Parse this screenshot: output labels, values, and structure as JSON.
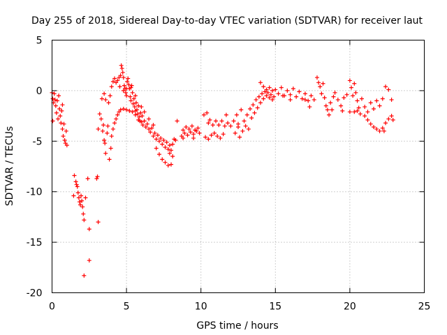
{
  "chart_data": {
    "type": "scatter",
    "title": "Day 255 of 2018, Sidereal Day-to-day VTEC variation (SDTVAR) for receiver laut",
    "xlabel": "GPS time / hours",
    "ylabel": "SDTVAR / TECUs",
    "xlim": [
      0,
      25
    ],
    "ylim": [
      -20,
      5
    ],
    "xticks": [
      0,
      5,
      10,
      15,
      20,
      25
    ],
    "yticks": [
      5,
      0,
      -5,
      -10,
      -15,
      -20
    ],
    "xtick_labels": [
      "0",
      "5",
      "10",
      "15",
      "20",
      "25"
    ],
    "ytick_labels": [
      "5",
      "0",
      "-5",
      "-10",
      "-15",
      "-20"
    ],
    "grid": true,
    "marker": "+",
    "color": "#ff0000",
    "series": [
      {
        "name": "SDTVAR",
        "points": [
          [
            0.0,
            -0.2
          ],
          [
            0.05,
            -0.8
          ],
          [
            0.1,
            -1.2
          ],
          [
            0.15,
            -0.3
          ],
          [
            0.2,
            -0.9
          ],
          [
            0.25,
            -1.5
          ],
          [
            0.3,
            -2.2
          ],
          [
            0.35,
            -1.0
          ],
          [
            0.4,
            -2.8
          ],
          [
            0.05,
            -3.0
          ],
          [
            0.5,
            -1.8
          ],
          [
            0.55,
            -2.5
          ],
          [
            0.6,
            -3.2
          ],
          [
            0.65,
            -2.0
          ],
          [
            0.7,
            -3.8
          ],
          [
            0.75,
            -4.5
          ],
          [
            0.8,
            -3.3
          ],
          [
            0.85,
            -4.9
          ],
          [
            0.9,
            -5.2
          ],
          [
            0.95,
            -4.0
          ],
          [
            1.0,
            -5.4
          ],
          [
            0.45,
            -0.5
          ],
          [
            0.7,
            -1.4
          ],
          [
            1.5,
            -8.4
          ],
          [
            1.6,
            -9.0
          ],
          [
            1.7,
            -9.5
          ],
          [
            1.75,
            -10.1
          ],
          [
            1.8,
            -10.6
          ],
          [
            1.85,
            -11.0
          ],
          [
            1.9,
            -11.3
          ],
          [
            1.95,
            -10.4
          ],
          [
            2.0,
            -10.9
          ],
          [
            2.05,
            -11.5
          ],
          [
            2.1,
            -12.2
          ],
          [
            2.15,
            -12.8
          ],
          [
            1.45,
            -10.4
          ],
          [
            2.25,
            -10.6
          ],
          [
            2.4,
            -8.7
          ],
          [
            2.5,
            -13.7
          ],
          [
            2.5,
            -16.8
          ],
          [
            2.15,
            -18.3
          ],
          [
            1.65,
            -9.3
          ],
          [
            3.0,
            -8.7
          ],
          [
            3.05,
            -8.5
          ],
          [
            3.1,
            -13.0
          ],
          [
            3.1,
            -3.8
          ],
          [
            3.2,
            -2.3
          ],
          [
            3.3,
            -2.8
          ],
          [
            3.4,
            -4.0
          ],
          [
            3.45,
            -3.4
          ],
          [
            3.5,
            -4.9
          ],
          [
            3.55,
            -5.2
          ],
          [
            3.6,
            -6.2
          ],
          [
            3.7,
            -4.2
          ],
          [
            3.75,
            -3.5
          ],
          [
            3.85,
            -6.8
          ],
          [
            3.95,
            -5.7
          ],
          [
            4.0,
            -4.5
          ],
          [
            4.1,
            -3.8
          ],
          [
            4.2,
            -3.2
          ],
          [
            4.3,
            -2.8
          ],
          [
            4.4,
            -2.4
          ],
          [
            4.5,
            -2.1
          ],
          [
            4.6,
            -1.9
          ],
          [
            4.8,
            -1.8
          ],
          [
            5.0,
            -1.9
          ],
          [
            5.2,
            -2.0
          ],
          [
            5.4,
            -2.1
          ],
          [
            5.6,
            -2.4
          ],
          [
            5.8,
            -2.9
          ],
          [
            3.35,
            -0.8
          ],
          [
            3.5,
            -0.3
          ],
          [
            3.6,
            -0.9
          ],
          [
            3.8,
            -1.2
          ],
          [
            3.9,
            -0.5
          ],
          [
            4.0,
            0.4
          ],
          [
            4.1,
            0.9
          ],
          [
            4.2,
            1.2
          ],
          [
            4.3,
            0.8
          ],
          [
            4.4,
            1.0
          ],
          [
            4.5,
            1.3
          ],
          [
            4.55,
            0.4
          ],
          [
            4.6,
            1.5
          ],
          [
            4.65,
            2.5
          ],
          [
            4.7,
            2.2
          ],
          [
            4.75,
            1.8
          ],
          [
            4.8,
            1.3
          ],
          [
            4.85,
            0.5
          ],
          [
            4.9,
            0.2
          ],
          [
            4.95,
            -0.2
          ],
          [
            5.0,
            -0.5
          ],
          [
            5.05,
            0.9
          ],
          [
            5.1,
            1.2
          ],
          [
            5.15,
            0.6
          ],
          [
            5.2,
            0.2
          ],
          [
            5.25,
            -0.6
          ],
          [
            5.3,
            -1.0
          ],
          [
            5.35,
            0.5
          ],
          [
            5.4,
            -0.2
          ],
          [
            5.45,
            -1.3
          ],
          [
            5.5,
            -0.8
          ],
          [
            5.55,
            -1.6
          ],
          [
            5.6,
            -2.0
          ],
          [
            5.65,
            -1.2
          ],
          [
            5.7,
            -1.9
          ],
          [
            5.75,
            -2.3
          ],
          [
            5.8,
            -1.5
          ],
          [
            5.85,
            -2.6
          ],
          [
            5.9,
            -3.0
          ],
          [
            5.95,
            -2.2
          ],
          [
            6.0,
            -3.1
          ],
          [
            6.05,
            -2.5
          ],
          [
            6.1,
            -3.4
          ],
          [
            6.2,
            -3.0
          ],
          [
            6.3,
            -3.6
          ],
          [
            6.4,
            -3.3
          ],
          [
            6.5,
            -3.8
          ],
          [
            6.6,
            -4.1
          ],
          [
            6.7,
            -3.7
          ],
          [
            6.8,
            -4.5
          ],
          [
            6.9,
            -4.2
          ],
          [
            7.0,
            -4.8
          ],
          [
            7.1,
            -4.4
          ],
          [
            7.2,
            -5.0
          ],
          [
            7.3,
            -4.7
          ],
          [
            7.4,
            -5.3
          ],
          [
            7.5,
            -4.9
          ],
          [
            7.6,
            -5.6
          ],
          [
            7.7,
            -5.1
          ],
          [
            7.8,
            -5.8
          ],
          [
            7.9,
            -5.4
          ],
          [
            8.0,
            -5.9
          ],
          [
            8.1,
            -5.3
          ],
          [
            8.2,
            -4.8
          ],
          [
            8.3,
            -4.9
          ],
          [
            8.4,
            -3.0
          ],
          [
            6.5,
            -2.8
          ],
          [
            6.8,
            -3.4
          ],
          [
            7.0,
            -5.7
          ],
          [
            7.2,
            -6.3
          ],
          [
            7.4,
            -6.8
          ],
          [
            7.6,
            -7.1
          ],
          [
            7.8,
            -7.4
          ],
          [
            8.0,
            -7.3
          ],
          [
            8.1,
            -6.5
          ],
          [
            7.9,
            -6.2
          ],
          [
            6.2,
            -2.1
          ],
          [
            5.0,
            0.2
          ],
          [
            4.8,
            0.0
          ],
          [
            5.3,
            0.3
          ],
          [
            5.6,
            -0.5
          ],
          [
            6.0,
            -1.6
          ],
          [
            8.7,
            -4.5
          ],
          [
            8.8,
            -3.9
          ],
          [
            8.9,
            -4.2
          ],
          [
            9.0,
            -3.6
          ],
          [
            9.1,
            -4.4
          ],
          [
            9.2,
            -3.8
          ],
          [
            9.3,
            -4.1
          ],
          [
            9.4,
            -3.5
          ],
          [
            9.5,
            -4.3
          ],
          [
            9.6,
            -3.9
          ],
          [
            9.7,
            -4.0
          ],
          [
            9.8,
            -3.7
          ],
          [
            9.9,
            -4.2
          ],
          [
            8.8,
            -4.7
          ],
          [
            9.5,
            -4.7
          ],
          [
            10.2,
            -2.4
          ],
          [
            10.4,
            -2.2
          ],
          [
            10.5,
            -3.2
          ],
          [
            10.6,
            -2.9
          ],
          [
            10.3,
            -4.6
          ],
          [
            10.5,
            -4.8
          ],
          [
            10.7,
            -4.4
          ],
          [
            10.9,
            -4.2
          ],
          [
            11.1,
            -4.5
          ],
          [
            11.3,
            -4.7
          ],
          [
            11.5,
            -4.3
          ],
          [
            10.8,
            -3.4
          ],
          [
            11.0,
            -3.0
          ],
          [
            11.2,
            -3.4
          ],
          [
            11.4,
            -3.0
          ],
          [
            11.6,
            -3.5
          ],
          [
            11.8,
            -3.2
          ],
          [
            12.0,
            -3.5
          ],
          [
            12.2,
            -3.0
          ],
          [
            11.7,
            -2.4
          ],
          [
            12.3,
            -4.2
          ],
          [
            12.5,
            -3.6
          ],
          [
            12.6,
            -4.6
          ],
          [
            12.8,
            -4.0
          ],
          [
            12.9,
            -3.0
          ],
          [
            13.0,
            -3.5
          ],
          [
            13.1,
            -2.4
          ],
          [
            13.2,
            -3.8
          ],
          [
            13.3,
            -1.8
          ],
          [
            13.4,
            -2.7
          ],
          [
            13.5,
            -1.4
          ],
          [
            13.6,
            -2.2
          ],
          [
            13.7,
            -0.9
          ],
          [
            13.8,
            -1.7
          ],
          [
            13.9,
            -0.6
          ],
          [
            14.0,
            -1.2
          ],
          [
            14.1,
            -0.3
          ],
          [
            14.2,
            -0.8
          ],
          [
            14.3,
            -0.1
          ],
          [
            14.4,
            -0.5
          ],
          [
            14.5,
            -0.2
          ],
          [
            14.6,
            -0.7
          ],
          [
            14.7,
            -0.4
          ],
          [
            14.8,
            -0.9
          ],
          [
            14.9,
            -0.6
          ],
          [
            14.0,
            0.8
          ],
          [
            14.2,
            0.4
          ],
          [
            14.4,
            0.1
          ],
          [
            14.6,
            0.3
          ],
          [
            14.8,
            0.0
          ],
          [
            12.4,
            -2.4
          ],
          [
            12.7,
            -1.9
          ],
          [
            12.5,
            -3.3
          ],
          [
            15.0,
            0.1
          ],
          [
            15.2,
            -0.3
          ],
          [
            15.4,
            0.3
          ],
          [
            15.6,
            -0.5
          ],
          [
            15.8,
            0.0
          ],
          [
            16.0,
            -0.4
          ],
          [
            16.2,
            0.2
          ],
          [
            16.4,
            -0.6
          ],
          [
            16.6,
            -0.1
          ],
          [
            16.8,
            -0.8
          ],
          [
            17.0,
            -0.3
          ],
          [
            17.2,
            -1.0
          ],
          [
            17.4,
            -0.5
          ],
          [
            17.6,
            -0.9
          ],
          [
            17.8,
            1.3
          ],
          [
            17.9,
            0.8
          ],
          [
            18.0,
            0.4
          ],
          [
            18.1,
            -0.3
          ],
          [
            18.2,
            0.7
          ],
          [
            18.3,
            -0.7
          ],
          [
            18.4,
            -1.5
          ],
          [
            18.5,
            -1.9
          ],
          [
            18.6,
            -2.4
          ],
          [
            18.7,
            -1.2
          ],
          [
            18.8,
            -1.9
          ],
          [
            18.9,
            -0.6
          ],
          [
            19.0,
            -0.2
          ],
          [
            19.2,
            -0.9
          ],
          [
            19.4,
            -1.5
          ],
          [
            19.6,
            -0.7
          ],
          [
            19.8,
            -0.4
          ],
          [
            20.0,
            1.0
          ],
          [
            20.1,
            0.3
          ],
          [
            20.2,
            -0.5
          ],
          [
            20.3,
            0.7
          ],
          [
            20.4,
            -0.2
          ],
          [
            20.5,
            -1.0
          ],
          [
            20.6,
            -1.7
          ],
          [
            20.8,
            -0.8
          ],
          [
            21.0,
            -1.6
          ],
          [
            21.2,
            -2.1
          ],
          [
            21.4,
            -1.2
          ],
          [
            21.6,
            -1.8
          ],
          [
            21.8,
            -1.0
          ],
          [
            22.0,
            -1.5
          ],
          [
            22.2,
            -0.8
          ],
          [
            22.4,
            0.4
          ],
          [
            22.6,
            0.1
          ],
          [
            22.8,
            -0.9
          ],
          [
            17.0,
            -0.9
          ],
          [
            17.3,
            -1.6
          ],
          [
            16.0,
            -0.9
          ],
          [
            15.5,
            -0.5
          ],
          [
            19.5,
            -2.0
          ],
          [
            20.0,
            -2.1
          ],
          [
            20.3,
            -2.1
          ],
          [
            20.5,
            -2.0
          ],
          [
            20.7,
            -2.3
          ],
          [
            21.0,
            -2.5
          ],
          [
            21.2,
            -2.9
          ],
          [
            21.4,
            -3.3
          ],
          [
            21.6,
            -3.6
          ],
          [
            21.8,
            -3.8
          ],
          [
            22.0,
            -4.0
          ],
          [
            22.2,
            -3.7
          ],
          [
            22.4,
            -3.2
          ],
          [
            22.6,
            -2.8
          ],
          [
            22.8,
            -2.5
          ],
          [
            22.9,
            -2.9
          ],
          [
            22.3,
            -4.0
          ]
        ]
      }
    ]
  }
}
